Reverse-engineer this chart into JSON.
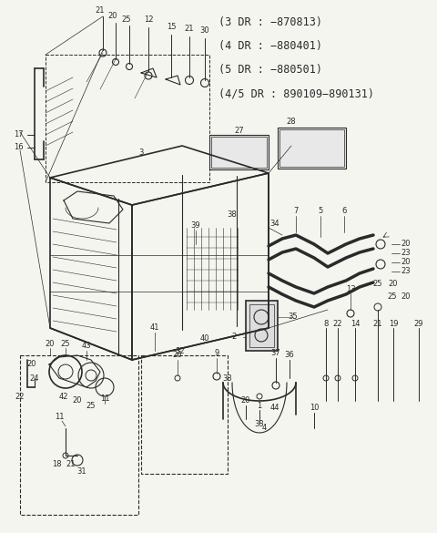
{
  "bg_color": "#f5f5f0",
  "line_color": "#2a2a2a",
  "text_color": "#2a2a2a",
  "fig_width": 4.8,
  "fig_height": 5.85,
  "dpi": 100,
  "info_lines": [
    "(3 DR : −870813)",
    "(4 DR : −880401)",
    "(5 DR : −880501)",
    "(4/5 DR : 890109−890131)"
  ],
  "label_fontsize": 6.0,
  "info_fontsize": 8.5
}
